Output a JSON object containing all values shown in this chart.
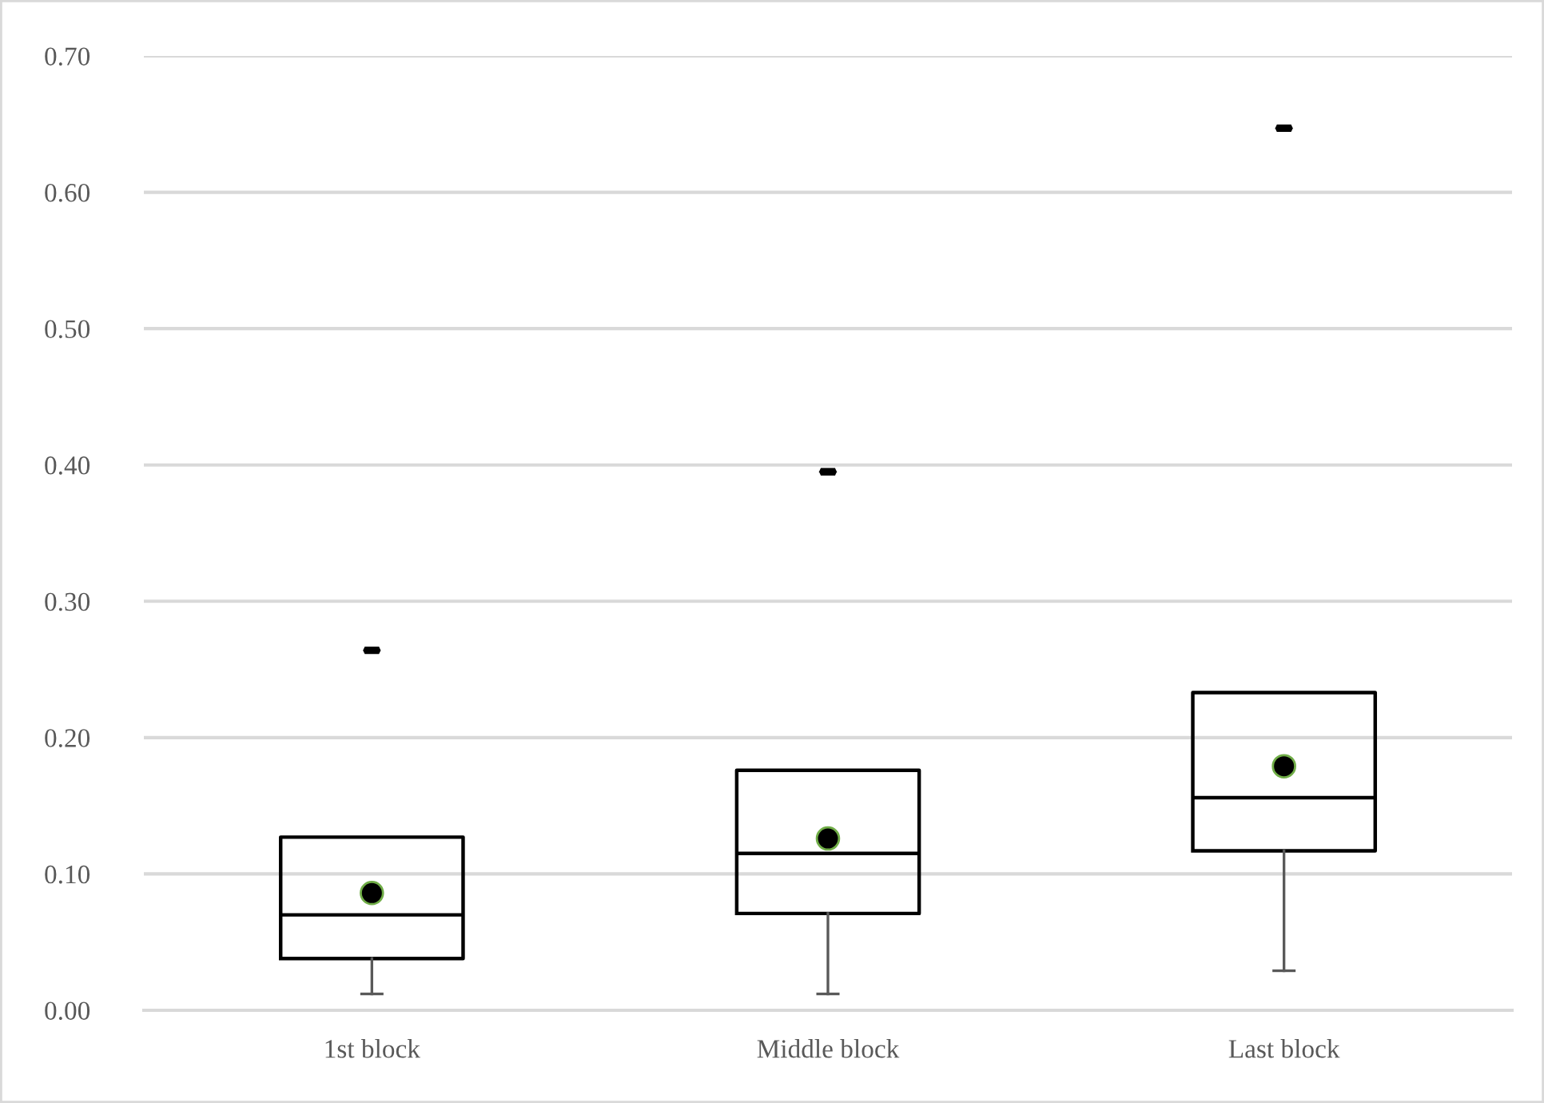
{
  "chart_data": {
    "type": "box",
    "categories": [
      "1st block",
      "Middle block",
      "Last block"
    ],
    "boxes": [
      {
        "low": 0.012,
        "q1": 0.038,
        "median": 0.07,
        "q3": 0.127,
        "high": 0.127,
        "mean": 0.086
      },
      {
        "low": 0.012,
        "q1": 0.071,
        "median": 0.115,
        "q3": 0.176,
        "high": 0.176,
        "mean": 0.126
      },
      {
        "low": 0.029,
        "q1": 0.117,
        "median": 0.156,
        "q3": 0.233,
        "high": 0.233,
        "mean": 0.179
      }
    ],
    "series": [
      {
        "type": "scatter",
        "color": "#000000",
        "x": [
          "1st block",
          "Middle block",
          "Last block"
        ],
        "values": [
          0.264,
          0.395,
          0.647
        ]
      }
    ],
    "ylim": [
      0,
      0.7
    ],
    "yticks": [
      {
        "value": 0,
        "label": "0.00"
      },
      {
        "value": 0.1,
        "label": "0.10"
      },
      {
        "value": 0.2,
        "label": "0.20"
      },
      {
        "value": 0.3,
        "label": "0.30"
      },
      {
        "value": 0.4,
        "label": "0.40"
      },
      {
        "value": 0.5,
        "label": "0.50"
      },
      {
        "value": 0.6,
        "label": "0.60"
      },
      {
        "value": 0.7,
        "label": "0.70"
      }
    ],
    "grid": "y"
  }
}
